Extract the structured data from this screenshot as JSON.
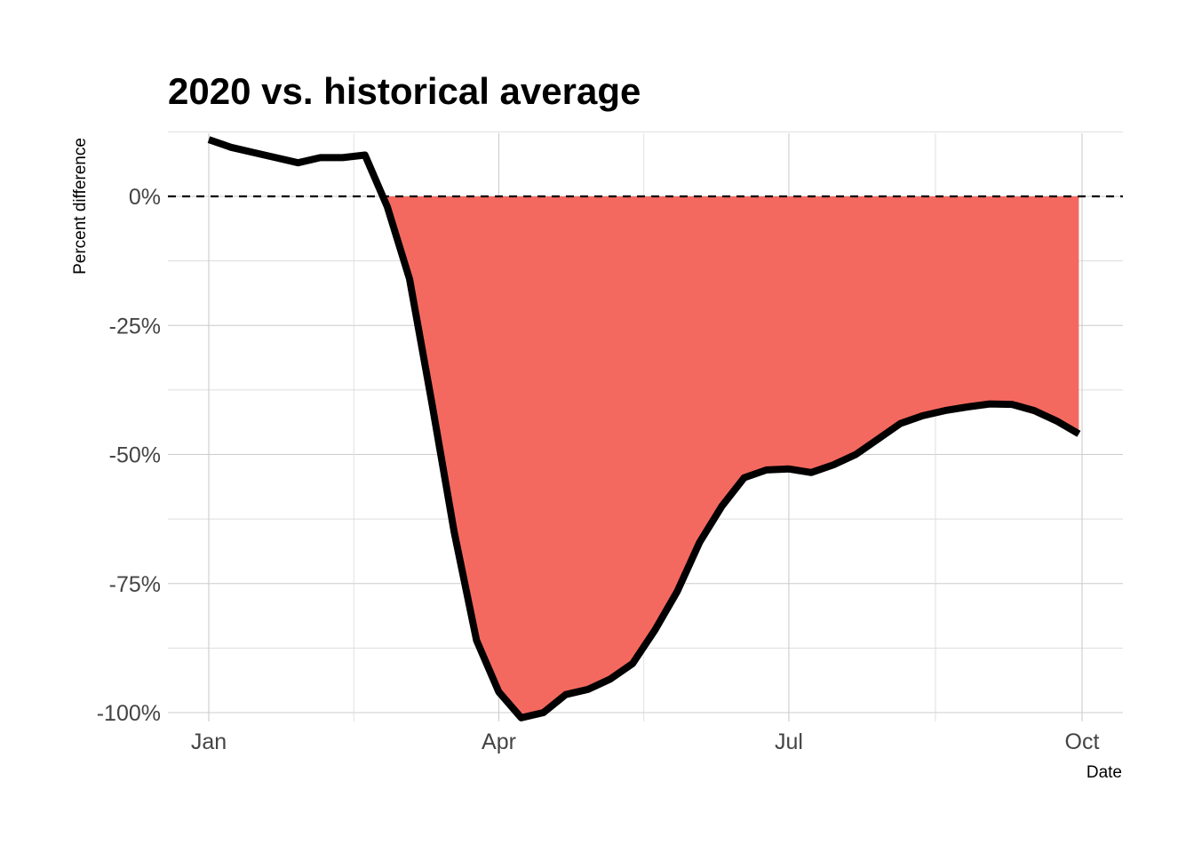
{
  "chart_data": {
    "type": "area",
    "title": "2020 vs. historical average",
    "xlabel": "Date",
    "ylabel": "Percent difference",
    "x_ticks": [
      "Jan",
      "Apr",
      "Jul",
      "Oct"
    ],
    "y_ticks": [
      "0%",
      "-25%",
      "-50%",
      "-75%",
      "-100%"
    ],
    "ylim": [
      -100,
      11
    ],
    "xlim": [
      "2020-01-01",
      "2020-10-01"
    ],
    "reference_line": {
      "y": 0,
      "style": "dashed"
    },
    "grid": true,
    "legend": "none",
    "series": [
      {
        "x": [
          "2020-01-01",
          "2020-01-08",
          "2020-01-15",
          "2020-01-22",
          "2020-01-29",
          "2020-02-05",
          "2020-02-12",
          "2020-02-19",
          "2020-02-26",
          "2020-03-04",
          "2020-03-11",
          "2020-03-18",
          "2020-03-25",
          "2020-04-01",
          "2020-04-08",
          "2020-04-15",
          "2020-04-22",
          "2020-04-29",
          "2020-05-06",
          "2020-05-13",
          "2020-05-20",
          "2020-05-27",
          "2020-06-03",
          "2020-06-10",
          "2020-06-17",
          "2020-06-24",
          "2020-07-01",
          "2020-07-08",
          "2020-07-15",
          "2020-07-22",
          "2020-07-29",
          "2020-08-05",
          "2020-08-12",
          "2020-08-19",
          "2020-08-26",
          "2020-09-02",
          "2020-09-09",
          "2020-09-16",
          "2020-09-23",
          "2020-09-30"
        ],
        "values": [
          11,
          9.5,
          8.5,
          7.5,
          6.5,
          7.5,
          7.5,
          8,
          -2,
          -16,
          -40,
          -65,
          -86,
          -96,
          -101,
          -100,
          -96.5,
          -95.5,
          -93.5,
          -90.5,
          -84,
          -76.5,
          -67,
          -60,
          -54.5,
          -53,
          -52.8,
          -53.5,
          -52,
          -50,
          -47,
          -44,
          -42.5,
          -41.5,
          -40.8,
          -40.2,
          -40.3,
          -41.5,
          -43.5,
          -46
        ]
      }
    ],
    "colors": {
      "line": "#000000",
      "fill": "#F4695F",
      "grid": "#cccccc",
      "reference": "#000000"
    }
  }
}
